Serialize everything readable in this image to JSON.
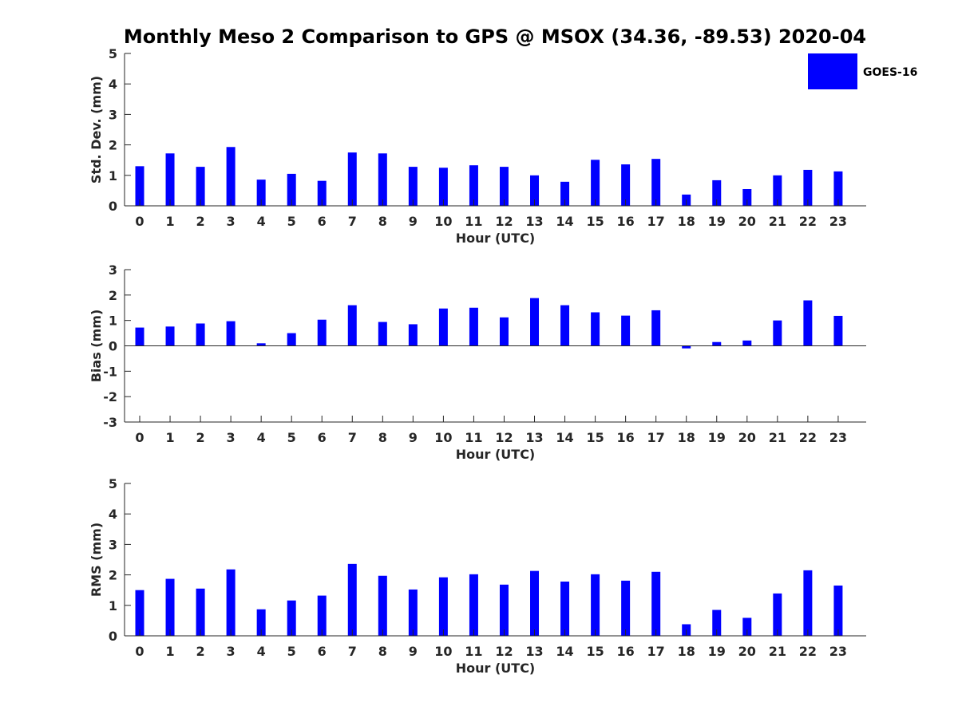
{
  "title": "Monthly Meso 2 Comparison to GPS @ MSOX (34.36, -89.53) 2020-04",
  "bar_color": "#0000ff",
  "legend": {
    "label": "GOES-16",
    "location": "top-right"
  },
  "chart_data": [
    {
      "type": "bar",
      "name": "std-dev",
      "series": [
        {
          "name": "GOES-16",
          "values": [
            1.3,
            1.72,
            1.28,
            1.93,
            0.86,
            1.05,
            0.82,
            1.75,
            1.72,
            1.28,
            1.25,
            1.33,
            1.28,
            1.0,
            0.79,
            1.51,
            1.36,
            1.54,
            0.37,
            0.84,
            0.55,
            1.0,
            1.18,
            1.13
          ]
        }
      ],
      "categories": [
        "0",
        "1",
        "2",
        "3",
        "4",
        "5",
        "6",
        "7",
        "8",
        "9",
        "10",
        "11",
        "12",
        "13",
        "14",
        "15",
        "16",
        "17",
        "18",
        "19",
        "20",
        "21",
        "22",
        "23"
      ],
      "xlabel": "Hour (UTC)",
      "ylabel": "Std. Dev. (mm)",
      "ylim": [
        0,
        5
      ],
      "yticks": [
        "0",
        "1",
        "2",
        "3",
        "4",
        "5"
      ],
      "grid": false
    },
    {
      "type": "bar",
      "name": "bias",
      "series": [
        {
          "name": "GOES-16",
          "values": [
            0.72,
            0.76,
            0.88,
            0.97,
            0.1,
            0.5,
            1.03,
            1.6,
            0.94,
            0.85,
            1.47,
            1.5,
            1.12,
            1.88,
            1.6,
            1.32,
            1.19,
            1.4,
            -0.1,
            0.15,
            0.21,
            1.0,
            1.79,
            1.18
          ]
        }
      ],
      "categories": [
        "0",
        "1",
        "2",
        "3",
        "4",
        "5",
        "6",
        "7",
        "8",
        "9",
        "10",
        "11",
        "12",
        "13",
        "14",
        "15",
        "16",
        "17",
        "18",
        "19",
        "20",
        "21",
        "22",
        "23"
      ],
      "xlabel": "Hour (UTC)",
      "ylabel": "Bias (mm)",
      "ylim": [
        -3,
        3
      ],
      "yticks": [
        "-3",
        "-2",
        "-1",
        "0",
        "1",
        "2",
        "3"
      ],
      "grid": false
    },
    {
      "type": "bar",
      "name": "rms",
      "series": [
        {
          "name": "GOES-16",
          "values": [
            1.5,
            1.87,
            1.55,
            2.18,
            0.87,
            1.16,
            1.32,
            2.36,
            1.97,
            1.52,
            1.92,
            2.02,
            1.68,
            2.13,
            1.78,
            2.02,
            1.81,
            2.1,
            0.38,
            0.85,
            0.59,
            1.39,
            2.15,
            1.65
          ]
        }
      ],
      "categories": [
        "0",
        "1",
        "2",
        "3",
        "4",
        "5",
        "6",
        "7",
        "8",
        "9",
        "10",
        "11",
        "12",
        "13",
        "14",
        "15",
        "16",
        "17",
        "18",
        "19",
        "20",
        "21",
        "22",
        "23"
      ],
      "xlabel": "Hour (UTC)",
      "ylabel": "RMS (mm)",
      "ylim": [
        0,
        5
      ],
      "yticks": [
        "0",
        "1",
        "2",
        "3",
        "4",
        "5"
      ],
      "grid": false
    }
  ]
}
